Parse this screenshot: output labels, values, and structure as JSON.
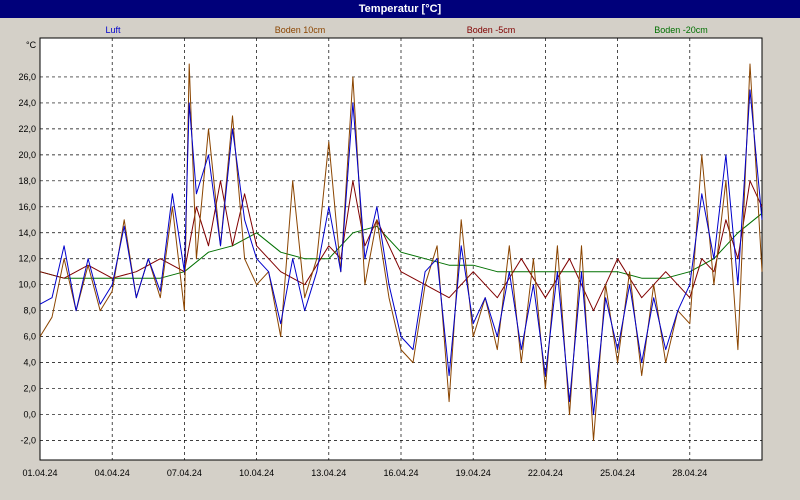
{
  "window": {
    "title": "Temperatur [°C]"
  },
  "chart_data": {
    "type": "line",
    "title": "Temperatur [°C]",
    "ylabel": "°C",
    "xlabel": "",
    "ylim": [
      -3.5,
      29.0
    ],
    "xlim": [
      0,
      30.0
    ],
    "grid": true,
    "legend": "top",
    "y_ticks": [
      -2,
      0,
      2,
      4,
      6,
      8,
      10,
      12,
      14,
      16,
      18,
      20,
      22,
      24,
      26
    ],
    "y_tick_labels": [
      "-2,0",
      "0,0",
      "2,0",
      "4,0",
      "6,0",
      "8,0",
      "10,0",
      "12,0",
      "14,0",
      "16,0",
      "18,0",
      "20,0",
      "22,0",
      "24,0",
      "26,0"
    ],
    "x_ticks": [
      0,
      3,
      6,
      9,
      12,
      15,
      18,
      21,
      24,
      27
    ],
    "x_tick_labels": [
      "01.04.24",
      "04.04.24",
      "07.04.24",
      "10.04.24",
      "13.04.24",
      "16.04.24",
      "19.04.24",
      "22.04.24",
      "25.04.24",
      "28.04.24"
    ],
    "series": [
      {
        "name": "Luft",
        "color": "#0000cc",
        "x": [
          0,
          0.5,
          1,
          1.5,
          2,
          2.5,
          3,
          3.5,
          4,
          4.5,
          5,
          5.5,
          6,
          6.2,
          6.5,
          7,
          7.5,
          8,
          8.5,
          9,
          9.5,
          10,
          10.5,
          11,
          11.5,
          12,
          12.5,
          13,
          13.5,
          14,
          14.5,
          15,
          15.5,
          16,
          16.5,
          17,
          17.5,
          18,
          18.5,
          19,
          19.5,
          20,
          20.5,
          21,
          21.5,
          22,
          22.5,
          23,
          23.5,
          24,
          24.5,
          25,
          25.5,
          26,
          26.5,
          27,
          27.5,
          28,
          28.5,
          29,
          29.5,
          30
        ],
        "values": [
          8.5,
          9,
          13,
          8,
          12,
          8.5,
          10,
          14.5,
          9,
          12,
          9.5,
          17,
          11,
          24,
          17,
          20,
          13,
          22,
          15,
          12,
          11,
          7,
          12,
          8,
          11,
          16,
          11,
          24,
          12,
          16,
          10,
          6,
          5,
          11,
          12,
          3,
          13,
          7,
          9,
          6,
          11,
          5,
          10,
          3,
          11,
          1,
          11,
          0,
          9,
          5,
          10,
          4,
          9,
          5,
          8,
          10,
          17,
          12,
          20,
          10,
          25,
          15
        ]
      },
      {
        "name": "Boden 10cm",
        "color": "#8b4500",
        "x": [
          0,
          0.5,
          1,
          1.5,
          2,
          2.5,
          3,
          3.5,
          4,
          4.5,
          5,
          5.5,
          6,
          6.2,
          6.5,
          7,
          7.5,
          8,
          8.5,
          9,
          9.5,
          10,
          10.5,
          11,
          11.5,
          12,
          12.5,
          13,
          13.5,
          14,
          14.5,
          15,
          15.5,
          16,
          16.5,
          17,
          17.5,
          18,
          18.5,
          19,
          19.5,
          20,
          20.5,
          21,
          21.5,
          22,
          22.5,
          23,
          23.5,
          24,
          24.5,
          25,
          25.5,
          26,
          26.5,
          27,
          27.5,
          28,
          28.5,
          29,
          29.5,
          30
        ],
        "values": [
          6,
          7.5,
          12,
          8,
          11.5,
          8,
          9.5,
          15,
          9,
          12,
          9,
          16,
          8,
          27,
          12,
          22,
          13,
          23,
          12,
          10,
          11,
          6,
          18,
          9,
          12,
          21,
          11,
          26,
          10,
          15,
          9,
          5,
          4,
          10,
          13,
          1,
          15,
          6,
          9,
          5,
          13,
          4,
          12,
          2,
          13,
          0,
          13,
          -2,
          10,
          4,
          11,
          3,
          10,
          4,
          8,
          7,
          20,
          10,
          18,
          5,
          27,
          11
        ]
      },
      {
        "name": "Boden -5cm",
        "color": "#800000",
        "x": [
          0,
          1,
          2,
          3,
          4,
          5,
          6,
          6.5,
          7,
          7.5,
          8,
          8.5,
          9,
          9.5,
          10,
          11,
          12,
          12.5,
          13,
          13.5,
          14,
          15,
          16,
          17,
          18,
          19,
          20,
          21,
          22,
          23,
          24,
          25,
          26,
          27,
          27.5,
          28,
          28.5,
          29,
          29.5,
          30
        ],
        "values": [
          11,
          10.5,
          11.5,
          10.5,
          11,
          12,
          11,
          16,
          13,
          18,
          13,
          17,
          13,
          12,
          11,
          10,
          13,
          12,
          18,
          13,
          15,
          11,
          10,
          9,
          11,
          9,
          12,
          9,
          12,
          8,
          12,
          9,
          11,
          9,
          12,
          11,
          15,
          12,
          18,
          16
        ]
      },
      {
        "name": "Boden -20cm",
        "color": "#007000",
        "x": [
          0,
          1,
          2,
          3,
          4,
          5,
          6,
          7,
          8,
          9,
          10,
          11,
          12,
          13,
          14,
          15,
          16,
          17,
          18,
          19,
          20,
          21,
          22,
          23,
          24,
          25,
          26,
          27,
          28,
          29,
          30
        ],
        "values": [
          11,
          10.5,
          10.5,
          10.5,
          10.5,
          10.5,
          11,
          12.5,
          13,
          14,
          12.5,
          12,
          12,
          14,
          14.5,
          12.5,
          12,
          11.5,
          11.5,
          11,
          11,
          11,
          11,
          11,
          11,
          10.5,
          10.5,
          11,
          12,
          14,
          15.5
        ]
      }
    ]
  }
}
